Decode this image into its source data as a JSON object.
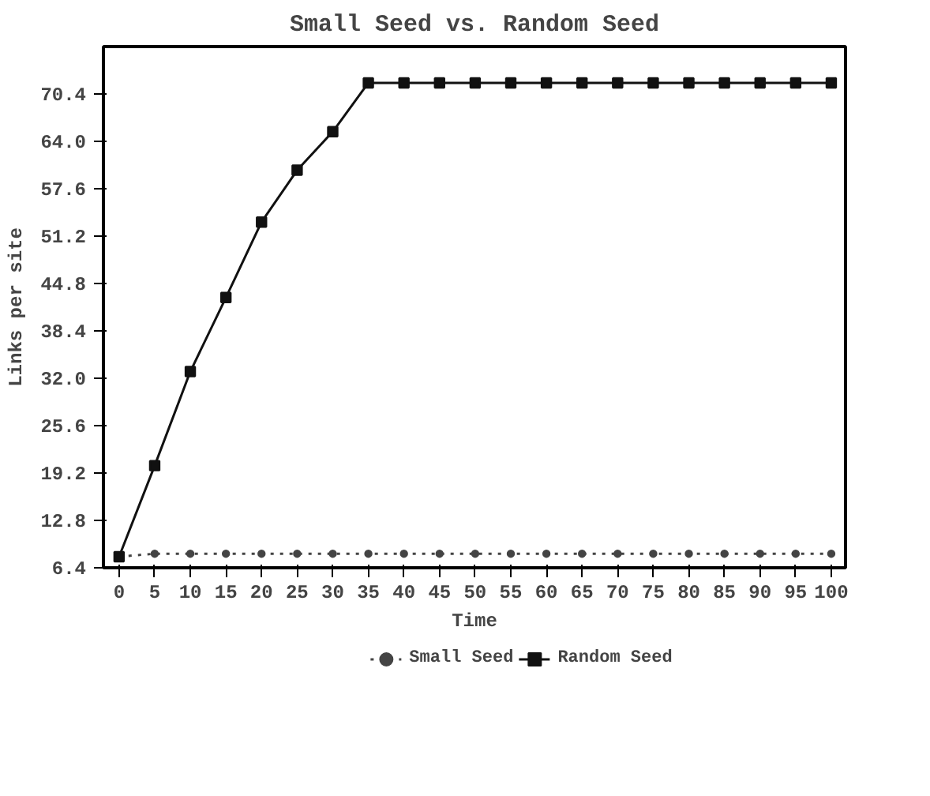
{
  "chart_data": {
    "type": "line",
    "title": "Small Seed vs. Random Seed",
    "xlabel": "Time",
    "ylabel": "Links per site",
    "x": [
      0,
      5,
      10,
      15,
      20,
      25,
      30,
      35,
      40,
      45,
      50,
      55,
      60,
      65,
      70,
      75,
      80,
      85,
      90,
      95,
      100
    ],
    "series": [
      {
        "name": "Small Seed",
        "color": "#444444",
        "marker": "circle",
        "line_style": "dotted",
        "values": [
          7.9,
          8.3,
          8.3,
          8.3,
          8.3,
          8.3,
          8.3,
          8.3,
          8.3,
          8.3,
          8.3,
          8.3,
          8.3,
          8.3,
          8.3,
          8.3,
          8.3,
          8.3,
          8.3,
          8.3,
          8.3
        ]
      },
      {
        "name": "Random Seed",
        "color": "#111111",
        "marker": "square",
        "line_style": "solid",
        "values": [
          7.9,
          20.2,
          32.9,
          42.9,
          53.1,
          60.1,
          65.3,
          71.9,
          71.9,
          71.9,
          71.9,
          71.9,
          71.9,
          71.9,
          71.9,
          71.9,
          71.9,
          71.9,
          71.9,
          71.9,
          71.9
        ]
      }
    ],
    "xlim": [
      -2.2,
      102
    ],
    "ylim": [
      6.4,
      76.8
    ],
    "xticks": [
      0,
      5,
      10,
      15,
      20,
      25,
      30,
      35,
      40,
      45,
      50,
      55,
      60,
      65,
      70,
      75,
      80,
      85,
      90,
      95,
      100
    ],
    "yticks": [
      6.4,
      12.8,
      19.2,
      25.6,
      {
        "value": 32,
        "label": "32.0"
      },
      38.4,
      44.8,
      51.2,
      57.6,
      {
        "value": 64,
        "label": "64.0"
      },
      70.4
    ],
    "grid": false,
    "legend": "bottom"
  }
}
